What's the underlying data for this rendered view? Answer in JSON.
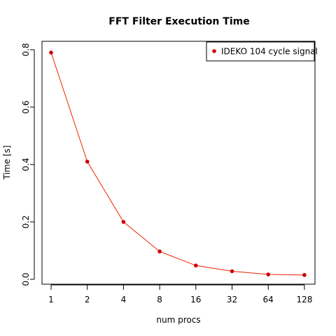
{
  "chart_data": {
    "type": "line",
    "title": "FFT Filter Execution Time",
    "xlabel": "num procs",
    "ylabel": "Time [s]",
    "x": [
      1,
      2,
      4,
      8,
      16,
      32,
      64,
      128
    ],
    "x_tick_labels": [
      "1",
      "2",
      "4",
      "8",
      "16",
      "32",
      "64",
      "128"
    ],
    "x_scale": "log2",
    "y_ticks": [
      0.0,
      0.2,
      0.4,
      0.6,
      0.8
    ],
    "y_tick_labels": [
      "0.0",
      "0.2",
      "0.4",
      "0.6",
      "0.8"
    ],
    "ylim": [
      0.0,
      0.8
    ],
    "grid": false,
    "legend_position": "top-right",
    "series": [
      {
        "name": "IDEKO 104 cycle signal",
        "color": "#ee2200",
        "marker_color": "#cc0000",
        "values": [
          0.79,
          0.41,
          0.2,
          0.097,
          0.048,
          0.028,
          0.017,
          0.015
        ]
      }
    ]
  }
}
